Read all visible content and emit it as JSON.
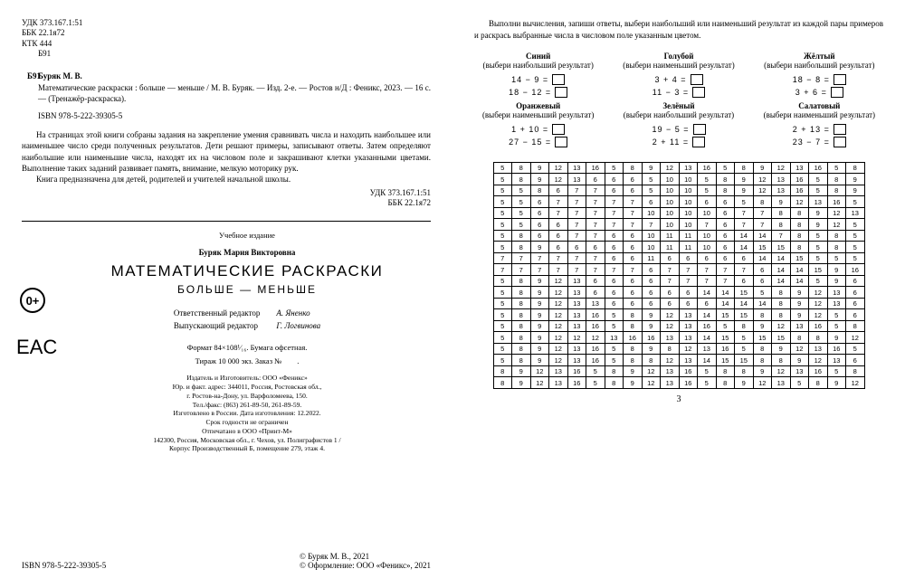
{
  "left": {
    "classifiers": [
      "УДК 373.167.1:51",
      "ББК 22.1я72",
      "КТК 444",
      "        Б91"
    ],
    "ref_code": "Б91",
    "author": "Буряк М. В.",
    "biblio": "Математические раскраски : больше — меньше / М. В. Буряк. — Изд. 2-е. — Ростов н/Д : Феникс, 2023. — 16 с. — (Тренажёр-раскраска).",
    "isbn": "ISBN 978-5-222-39305-5",
    "desc": "На страницах этой книги собраны задания на закрепление умения сравнивать числа и находить наибольшее или наименьшее число среди полученных результатов. Дети решают примеры, записывают ответы. Затем определяют наибольшие или наименьшие числа, находят их на числовом поле и закрашивают клетки указанными цветами. Выполнение таких заданий развивает память, внимание, мелкую моторику рук.",
    "desc2": "Книга предназначена для детей, родителей и учителей начальной школы.",
    "rclass": [
      "УДК 373.167.1:51",
      "ББК 22.1я72"
    ],
    "edu_label": "Учебное издание",
    "author_full": "Буряк Мария Викторовна",
    "title": "МАТЕМАТИЧЕСКИЕ РАСКРАСКИ",
    "subtitle": "БОЛЬШЕ — МЕНЬШЕ",
    "editors": [
      {
        "role": "Ответственный редактор",
        "name": "А. Яненко"
      },
      {
        "role": "Выпускающий редактор",
        "name": "Г. Логвинова"
      }
    ],
    "tech": [
      "Формат 84×108¹⁄₁₆. Бумага офсетная.",
      "Тираж 10 000 экз. Заказ №        ."
    ],
    "publisher": [
      "Издатель и Изготовитель: ООО «Феникс»",
      "Юр. и факт. адрес: 344011, Россия, Ростовская обл.,",
      "г. Ростов-на-Дону, ул. Варфоломеева, 150.",
      "Тел./факс: (863) 261-89-50, 261-89-59.",
      "Изготовлено в России. Дата изготовления: 12.2022.",
      "Срок годности не ограничен",
      "Отпечатано в  ООО «Принт-М»",
      "142300, Россия, Московская обл., г. Чехов, ул. Полиграфистов 1 /",
      "Корпус Производственный Б, помещение 279, этаж 4."
    ],
    "footer_isbn": "ISBN 978-5-222-39305-5",
    "copyright": [
      "© Буряк М. В., 2021",
      "© Оформление: ООО «Феникс», 2021"
    ],
    "badge0": "0+",
    "eac": "EAC"
  },
  "right": {
    "instr": "Выполни вычисления, запиши ответы, выбери наибольший или наименьший результат из каждой пары примеров и раскрась выбранные числа в числовом поле указанным цветом.",
    "groups": [
      {
        "name": "Синий",
        "sub": "(выбери наибольший результат)",
        "ex": [
          "14 − 9 =",
          "18 − 12 ="
        ]
      },
      {
        "name": "Голубой",
        "sub": "(выбери наименьший результат)",
        "ex": [
          "3 + 4 =",
          "11 − 3 ="
        ]
      },
      {
        "name": "Жёлтый",
        "sub": "(выбери наибольший результат)",
        "ex": [
          "18 − 8 =",
          "3 + 6 ="
        ]
      },
      {
        "name": "Оранжевый",
        "sub": "(выбери наименьший результат)",
        "ex": [
          "1 + 10 =",
          "27 − 15 ="
        ]
      },
      {
        "name": "Зелёный",
        "sub": "(выбери наибольший результат)",
        "ex": [
          "19 − 5 =",
          "2 + 11 ="
        ]
      },
      {
        "name": "Салатовый",
        "sub": "(выбери наименьший результат)",
        "ex": [
          "2 + 13 =",
          "23 − 7 ="
        ]
      }
    ],
    "grid": [
      [
        5,
        8,
        9,
        12,
        13,
        16,
        5,
        8,
        9,
        12,
        13,
        16,
        5,
        8,
        9,
        12,
        13,
        16,
        5,
        8
      ],
      [
        5,
        8,
        9,
        12,
        13,
        6,
        6,
        6,
        5,
        10,
        10,
        5,
        8,
        9,
        12,
        13,
        16,
        5,
        8,
        9
      ],
      [
        5,
        5,
        8,
        6,
        7,
        7,
        6,
        6,
        5,
        10,
        10,
        5,
        8,
        9,
        12,
        13,
        16,
        5,
        8,
        9
      ],
      [
        5,
        5,
        6,
        7,
        7,
        7,
        7,
        7,
        6,
        10,
        10,
        6,
        6,
        5,
        8,
        9,
        12,
        13,
        16,
        5
      ],
      [
        5,
        5,
        6,
        7,
        7,
        7,
        7,
        7,
        10,
        10,
        10,
        10,
        6,
        7,
        7,
        8,
        8,
        9,
        12,
        13
      ],
      [
        5,
        5,
        6,
        6,
        7,
        7,
        7,
        7,
        7,
        10,
        10,
        7,
        6,
        7,
        7,
        8,
        8,
        9,
        12,
        5
      ],
      [
        5,
        8,
        6,
        6,
        7,
        7,
        6,
        6,
        10,
        11,
        11,
        10,
        6,
        14,
        14,
        7,
        8,
        5,
        8,
        5
      ],
      [
        5,
        8,
        9,
        6,
        6,
        6,
        6,
        6,
        10,
        11,
        11,
        10,
        6,
        14,
        15,
        15,
        8,
        5,
        8,
        5
      ],
      [
        7,
        7,
        7,
        7,
        7,
        7,
        6,
        6,
        11,
        6,
        6,
        6,
        6,
        6,
        14,
        14,
        15,
        5,
        5,
        5
      ],
      [
        7,
        7,
        7,
        7,
        7,
        7,
        7,
        7,
        6,
        7,
        7,
        7,
        7,
        7,
        6,
        14,
        14,
        15,
        9,
        16
      ],
      [
        5,
        8,
        9,
        12,
        13,
        6,
        6,
        6,
        6,
        7,
        7,
        7,
        7,
        6,
        6,
        14,
        14,
        5,
        9,
        6
      ],
      [
        5,
        8,
        9,
        12,
        13,
        6,
        6,
        6,
        6,
        6,
        6,
        14,
        14,
        15,
        5,
        8,
        9,
        12,
        13,
        6
      ],
      [
        5,
        8,
        9,
        12,
        13,
        13,
        6,
        6,
        6,
        6,
        6,
        6,
        14,
        14,
        14,
        8,
        9,
        12,
        13,
        6
      ],
      [
        5,
        8,
        9,
        12,
        13,
        16,
        5,
        8,
        9,
        12,
        13,
        14,
        15,
        15,
        8,
        8,
        9,
        12,
        5,
        6
      ],
      [
        5,
        8,
        9,
        12,
        13,
        16,
        5,
        8,
        9,
        12,
        13,
        16,
        5,
        8,
        9,
        12,
        13,
        16,
        5,
        8
      ],
      [
        5,
        8,
        9,
        12,
        12,
        12,
        13,
        16,
        16,
        13,
        13,
        14,
        15,
        5,
        15,
        15,
        8,
        8,
        9,
        12
      ],
      [
        5,
        8,
        9,
        12,
        13,
        16,
        5,
        8,
        9,
        8,
        12,
        13,
        16,
        5,
        8,
        9,
        12,
        13,
        16,
        5
      ],
      [
        5,
        8,
        9,
        12,
        13,
        16,
        5,
        8,
        8,
        12,
        13,
        14,
        15,
        15,
        8,
        8,
        9,
        12,
        13,
        6
      ],
      [
        8,
        9,
        12,
        13,
        16,
        5,
        8,
        9,
        12,
        13,
        16,
        5,
        8,
        8,
        9,
        12,
        13,
        16,
        5,
        8
      ],
      [
        8,
        9,
        12,
        13,
        16,
        5,
        8,
        9,
        12,
        13,
        16,
        5,
        8,
        9,
        12,
        13,
        5,
        8,
        9,
        12
      ]
    ],
    "pagenum": "3"
  }
}
